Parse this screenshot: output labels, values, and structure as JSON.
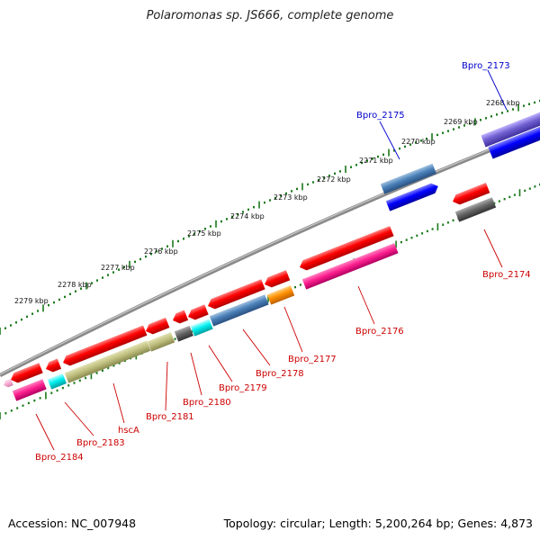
{
  "title": "Polaromonas sp. JS666, complete genome",
  "footer": {
    "accession": "Accession: NC_007948",
    "info": "Topology: circular; Length: 5,200,264 bp; Genes: 4,873"
  },
  "colors": {
    "backbone": "#888888",
    "tick": "#1a7a1a",
    "label_forward": "#0000cc",
    "label_reverse": "#cc0000"
  },
  "scale_labels": [
    "2268 kbp",
    "2269 kbp",
    "2270 kbp",
    "2271 kbp",
    "2272 kbp",
    "2273 kbp",
    "2274 kbp",
    "2275 kbp",
    "2276 kbp",
    "2277 kbp",
    "2278 kbp",
    "2279 kbp"
  ],
  "gene_labels": [
    {
      "text": "Bpro_2173",
      "strand": "forward"
    },
    {
      "text": "Bpro_2175",
      "strand": "forward"
    },
    {
      "text": "Bpro_2174",
      "strand": "reverse"
    },
    {
      "text": "Bpro_2176",
      "strand": "reverse"
    },
    {
      "text": "Bpro_2177",
      "strand": "reverse"
    },
    {
      "text": "Bpro_2178",
      "strand": "reverse"
    },
    {
      "text": "Bpro_2179",
      "strand": "reverse"
    },
    {
      "text": "Bpro_2180",
      "strand": "reverse"
    },
    {
      "text": "Bpro_2181",
      "strand": "reverse"
    },
    {
      "text": "hscA",
      "strand": "reverse"
    },
    {
      "text": "Bpro_2183",
      "strand": "reverse"
    },
    {
      "text": "Bpro_2184",
      "strand": "reverse"
    }
  ]
}
